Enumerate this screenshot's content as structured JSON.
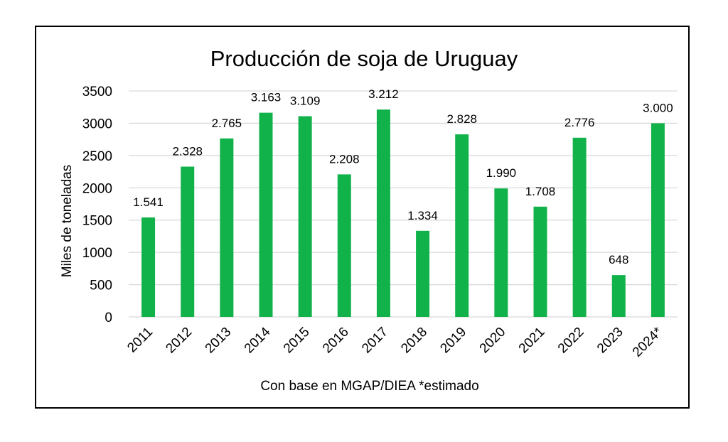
{
  "chart_data": {
    "type": "bar",
    "title": "Producción de soja de Uruguay",
    "xlabel": "Con base en MGAP/DIEA *estimado",
    "ylabel": "Miles de toneladas",
    "categories": [
      "2011",
      "2012",
      "2013",
      "2014",
      "2015",
      "2016",
      "2017",
      "2018",
      "2019",
      "2020",
      "2021",
      "2022",
      "2023",
      "2024*"
    ],
    "values": [
      1541,
      2328,
      2765,
      3163,
      3109,
      2208,
      3212,
      1334,
      2828,
      1990,
      1708,
      2776,
      648,
      3000
    ],
    "data_labels": [
      "1.541",
      "2.328",
      "2.765",
      "3.163",
      "3.109",
      "2.208",
      "3.212",
      "1.334",
      "2.828",
      "1.990",
      "1.708",
      "2.776",
      "648",
      "3.000"
    ],
    "yticks": [
      "0",
      "500",
      "1000",
      "1500",
      "2000",
      "2500",
      "3000",
      "3500"
    ],
    "ylim": [
      0,
      3500
    ],
    "grid": true,
    "bar_color": "#12b24b",
    "grid_color": "#d9d9d9"
  }
}
